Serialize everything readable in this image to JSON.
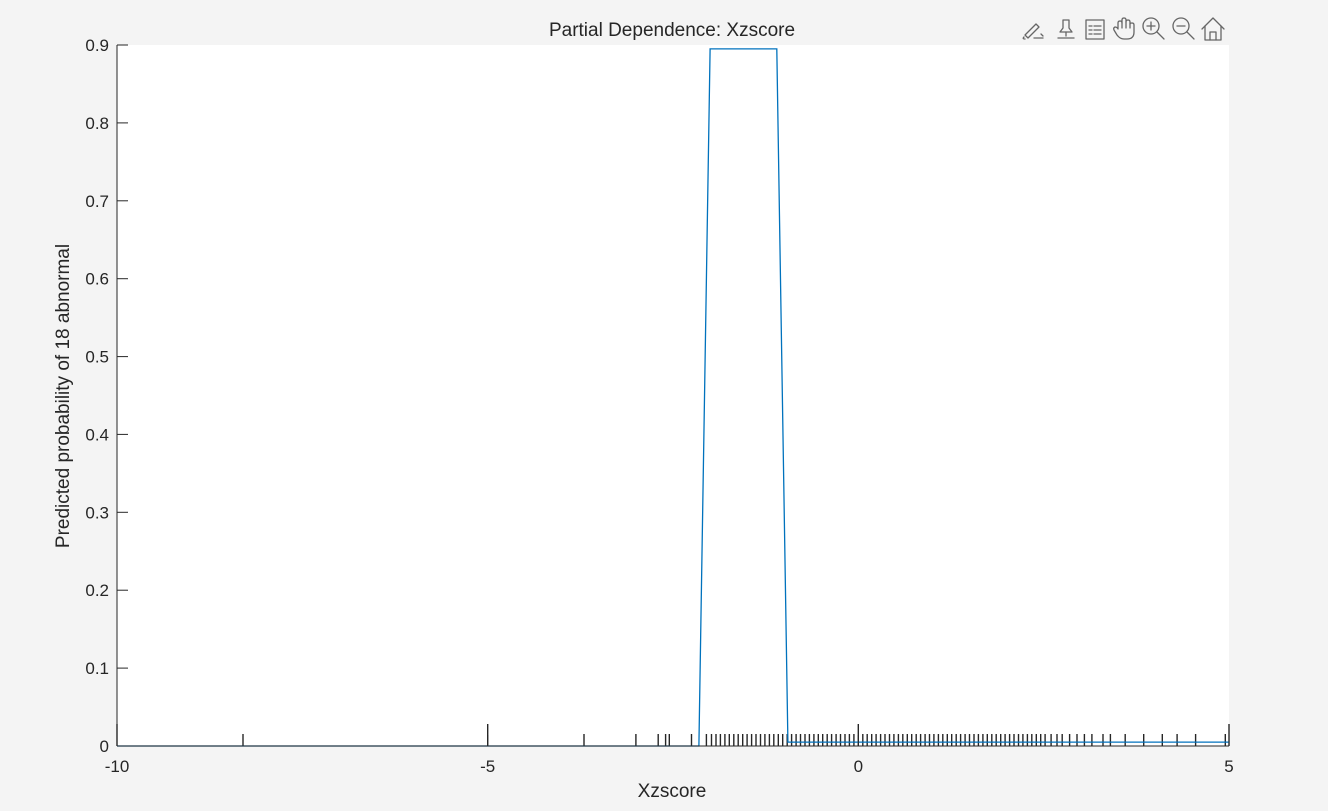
{
  "chart_data": {
    "type": "line",
    "title": "Partial Dependence: Xzscore",
    "xlabel": "Xzscore",
    "ylabel": "Predicted probability of 18 abnormal",
    "xlim": [
      -10,
      5
    ],
    "ylim": [
      0,
      0.9
    ],
    "xticks": [
      -10,
      -5,
      0,
      5
    ],
    "xtick_labels": [
      "-10",
      "-5",
      "0",
      "5"
    ],
    "yticks": [
      0,
      0.1,
      0.2,
      0.3,
      0.4,
      0.5,
      0.6,
      0.7,
      0.8,
      0.9
    ],
    "ytick_labels": [
      "0",
      "0.1",
      "0.2",
      "0.3",
      "0.4",
      "0.5",
      "0.6",
      "0.7",
      "0.8",
      "0.9"
    ],
    "grid": false,
    "series": [
      {
        "color": "#0072bd",
        "x": [
          -10,
          -2.15,
          -2.0,
          -1.1,
          -0.95,
          5
        ],
        "y": [
          0,
          0,
          0.895,
          0.895,
          0.005,
          0.005
        ]
      }
    ],
    "rug": {
      "color": "#262626",
      "x": [
        -10,
        -8.3,
        -5,
        -3.7,
        -3.0,
        -2.7,
        -2.6,
        -2.55,
        -2.25,
        -2.05,
        -1.98,
        -1.92,
        -1.86,
        -1.8,
        -1.74,
        -1.68,
        -1.62,
        -1.56,
        -1.5,
        -1.44,
        -1.38,
        -1.32,
        -1.26,
        -1.2,
        -1.14,
        -1.08,
        -1.02,
        -0.96,
        -0.9,
        -0.84,
        -0.78,
        -0.72,
        -0.66,
        -0.6,
        -0.54,
        -0.48,
        -0.42,
        -0.36,
        -0.3,
        -0.24,
        -0.18,
        -0.12,
        -0.06,
        0,
        0.06,
        0.12,
        0.18,
        0.24,
        0.3,
        0.36,
        0.42,
        0.48,
        0.54,
        0.6,
        0.66,
        0.72,
        0.78,
        0.84,
        0.9,
        0.96,
        1.02,
        1.08,
        1.14,
        1.2,
        1.26,
        1.32,
        1.38,
        1.44,
        1.5,
        1.56,
        1.62,
        1.68,
        1.74,
        1.8,
        1.86,
        1.92,
        1.98,
        2.04,
        2.1,
        2.16,
        2.22,
        2.28,
        2.34,
        2.4,
        2.46,
        2.52,
        2.6,
        2.68,
        2.75,
        2.85,
        2.95,
        3.05,
        3.15,
        3.3,
        3.4,
        3.6,
        3.85,
        4.1,
        4.3,
        4.55,
        4.95,
        5
      ]
    }
  },
  "toolbar": {
    "icons": [
      "brush-icon",
      "data-tips-icon",
      "legend-icon",
      "pan-icon",
      "zoom-in-icon",
      "zoom-out-icon",
      "home-icon"
    ]
  }
}
